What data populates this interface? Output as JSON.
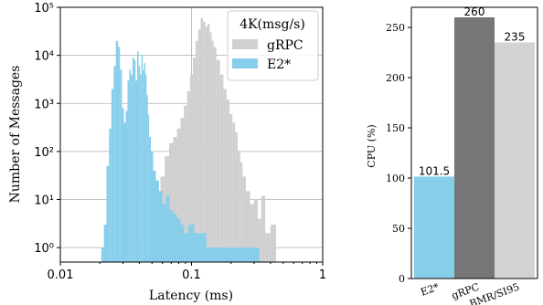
{
  "chart_data": [
    {
      "type": "bar",
      "subtype": "histogram",
      "xlabel": "Latency (ms)",
      "ylabel": "Number of Messages",
      "xscale": "log",
      "yscale": "log",
      "xlim": [
        0.01,
        1
      ],
      "ylim": [
        0.5,
        100000
      ],
      "x_ticks": [
        {
          "value": 0.01,
          "label": "0.01"
        },
        {
          "value": 0.1,
          "label": "0.1"
        },
        {
          "value": 1,
          "label": "1"
        }
      ],
      "y_ticks": [
        {
          "value": 1,
          "label": "10⁰"
        },
        {
          "value": 10,
          "label": "10¹"
        },
        {
          "value": 100,
          "label": "10²"
        },
        {
          "value": 1000,
          "label": "10³"
        },
        {
          "value": 10000,
          "label": "10⁴"
        },
        {
          "value": 100000,
          "label": "10⁵"
        }
      ],
      "grid": true,
      "legend": {
        "title": "4K(msg/s)",
        "placement": "top-right"
      },
      "series": [
        {
          "name": "gRPC",
          "color": "#d0d0d0",
          "x": [
            0.052,
            0.056,
            0.06,
            0.065,
            0.07,
            0.075,
            0.08,
            0.085,
            0.09,
            0.095,
            0.1,
            0.105,
            0.11,
            0.115,
            0.12,
            0.125,
            0.13,
            0.135,
            0.14,
            0.145,
            0.15,
            0.16,
            0.17,
            0.18,
            0.19,
            0.2,
            0.21,
            0.22,
            0.23,
            0.24,
            0.25,
            0.27,
            0.29,
            0.31,
            0.33,
            0.35,
            0.38,
            0.42
          ],
          "values": [
            2,
            8,
            30,
            80,
            150,
            200,
            300,
            500,
            900,
            1800,
            4000,
            9000,
            20000,
            35000,
            60000,
            50000,
            40000,
            45000,
            30000,
            20000,
            15000,
            8000,
            4000,
            2000,
            1200,
            600,
            400,
            250,
            100,
            60,
            30,
            15,
            8,
            10,
            4,
            12,
            2,
            3
          ]
        },
        {
          "name": "E2*",
          "color": "#87ceeb",
          "x": [
            0.021,
            0.022,
            0.023,
            0.024,
            0.025,
            0.026,
            0.027,
            0.028,
            0.029,
            0.03,
            0.031,
            0.032,
            0.033,
            0.034,
            0.035,
            0.036,
            0.037,
            0.038,
            0.039,
            0.04,
            0.041,
            0.042,
            0.043,
            0.044,
            0.045,
            0.046,
            0.047,
            0.048,
            0.05,
            0.052,
            0.055,
            0.058,
            0.062,
            0.066,
            0.07,
            0.075,
            0.08,
            0.085,
            0.09,
            0.1,
            0.11,
            0.12,
            0.14,
            0.16,
            0.2,
            0.25,
            0.3
          ],
          "values": [
            1,
            3,
            50,
            300,
            2000,
            6000,
            20000,
            15000,
            5000,
            800,
            400,
            700,
            3000,
            5000,
            4000,
            9000,
            8000,
            3000,
            12000,
            6000,
            4000,
            10000,
            5000,
            7000,
            4000,
            1500,
            600,
            200,
            100,
            40,
            25,
            15,
            8,
            12,
            6,
            5,
            4,
            3,
            2,
            3,
            2,
            2,
            1,
            1,
            1,
            1,
            1
          ]
        }
      ]
    },
    {
      "type": "bar",
      "ylabel": "CPU (%)",
      "categories": [
        "E2*",
        "gRPC",
        "BMR/SI95"
      ],
      "values": [
        101.5,
        260,
        235
      ],
      "value_labels": [
        "101.5",
        "260",
        "235"
      ],
      "colors": [
        "#87ceeb",
        "#777777",
        "#d3d3d3"
      ],
      "ylim": [
        0,
        270
      ],
      "y_ticks": [
        0,
        50,
        100,
        150,
        200,
        250
      ],
      "grid": false
    }
  ]
}
